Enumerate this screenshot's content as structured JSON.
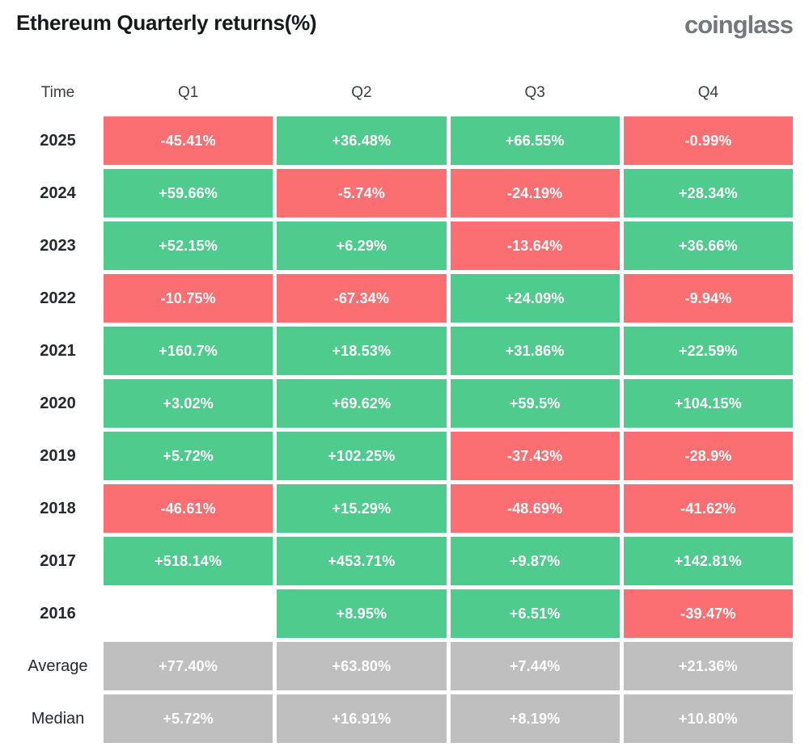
{
  "header": {
    "title": "Ethereum Quarterly returns(%)",
    "logo": "coinglass"
  },
  "colors": {
    "pos": "#4FCB8D",
    "neg": "#FB6F72",
    "stat": "#BFBFBF",
    "cell_text": "#FFFFFF"
  },
  "table": {
    "columns": [
      "Time",
      "Q1",
      "Q2",
      "Q3",
      "Q4"
    ],
    "rows": [
      {
        "label": "2025",
        "kind": "year",
        "cells": [
          {
            "text": "-45.41%",
            "type": "neg"
          },
          {
            "text": "+36.48%",
            "type": "pos"
          },
          {
            "text": "+66.55%",
            "type": "pos"
          },
          {
            "text": "-0.99%",
            "type": "neg"
          }
        ]
      },
      {
        "label": "2024",
        "kind": "year",
        "cells": [
          {
            "text": "+59.66%",
            "type": "pos"
          },
          {
            "text": "-5.74%",
            "type": "neg"
          },
          {
            "text": "-24.19%",
            "type": "neg"
          },
          {
            "text": "+28.34%",
            "type": "pos"
          }
        ]
      },
      {
        "label": "2023",
        "kind": "year",
        "cells": [
          {
            "text": "+52.15%",
            "type": "pos"
          },
          {
            "text": "+6.29%",
            "type": "pos"
          },
          {
            "text": "-13.64%",
            "type": "neg"
          },
          {
            "text": "+36.66%",
            "type": "pos"
          }
        ]
      },
      {
        "label": "2022",
        "kind": "year",
        "cells": [
          {
            "text": "-10.75%",
            "type": "neg"
          },
          {
            "text": "-67.34%",
            "type": "neg"
          },
          {
            "text": "+24.09%",
            "type": "pos"
          },
          {
            "text": "-9.94%",
            "type": "neg"
          }
        ]
      },
      {
        "label": "2021",
        "kind": "year",
        "cells": [
          {
            "text": "+160.7%",
            "type": "pos"
          },
          {
            "text": "+18.53%",
            "type": "pos"
          },
          {
            "text": "+31.86%",
            "type": "pos"
          },
          {
            "text": "+22.59%",
            "type": "pos"
          }
        ]
      },
      {
        "label": "2020",
        "kind": "year",
        "cells": [
          {
            "text": "+3.02%",
            "type": "pos"
          },
          {
            "text": "+69.62%",
            "type": "pos"
          },
          {
            "text": "+59.5%",
            "type": "pos"
          },
          {
            "text": "+104.15%",
            "type": "pos"
          }
        ]
      },
      {
        "label": "2019",
        "kind": "year",
        "cells": [
          {
            "text": "+5.72%",
            "type": "pos"
          },
          {
            "text": "+102.25%",
            "type": "pos"
          },
          {
            "text": "-37.43%",
            "type": "neg"
          },
          {
            "text": "-28.9%",
            "type": "neg"
          }
        ]
      },
      {
        "label": "2018",
        "kind": "year",
        "cells": [
          {
            "text": "-46.61%",
            "type": "neg"
          },
          {
            "text": "+15.29%",
            "type": "pos"
          },
          {
            "text": "-48.69%",
            "type": "neg"
          },
          {
            "text": "-41.62%",
            "type": "neg"
          }
        ]
      },
      {
        "label": "2017",
        "kind": "year",
        "cells": [
          {
            "text": "+518.14%",
            "type": "pos"
          },
          {
            "text": "+453.71%",
            "type": "pos"
          },
          {
            "text": "+9.87%",
            "type": "pos"
          },
          {
            "text": "+142.81%",
            "type": "pos"
          }
        ]
      },
      {
        "label": "2016",
        "kind": "year",
        "cells": [
          {
            "text": "",
            "type": "empty"
          },
          {
            "text": "+8.95%",
            "type": "pos"
          },
          {
            "text": "+6.51%",
            "type": "pos"
          },
          {
            "text": "-39.47%",
            "type": "neg"
          }
        ]
      },
      {
        "label": "Average",
        "kind": "stat",
        "cells": [
          {
            "text": "+77.40%",
            "type": "stat"
          },
          {
            "text": "+63.80%",
            "type": "stat"
          },
          {
            "text": "+7.44%",
            "type": "stat"
          },
          {
            "text": "+21.36%",
            "type": "stat"
          }
        ]
      },
      {
        "label": "Median",
        "kind": "stat",
        "cells": [
          {
            "text": "+5.72%",
            "type": "stat"
          },
          {
            "text": "+16.91%",
            "type": "stat"
          },
          {
            "text": "+8.19%",
            "type": "stat"
          },
          {
            "text": "+10.80%",
            "type": "stat"
          }
        ]
      }
    ]
  },
  "chart_data": {
    "type": "heatmap",
    "title": "Ethereum Quarterly returns(%)",
    "columns": [
      "Q1",
      "Q2",
      "Q3",
      "Q4"
    ],
    "rows": [
      {
        "label": "2025",
        "values": [
          -45.41,
          36.48,
          66.55,
          -0.99
        ]
      },
      {
        "label": "2024",
        "values": [
          59.66,
          -5.74,
          -24.19,
          28.34
        ]
      },
      {
        "label": "2023",
        "values": [
          52.15,
          6.29,
          -13.64,
          36.66
        ]
      },
      {
        "label": "2022",
        "values": [
          -10.75,
          -67.34,
          24.09,
          -9.94
        ]
      },
      {
        "label": "2021",
        "values": [
          160.7,
          18.53,
          31.86,
          22.59
        ]
      },
      {
        "label": "2020",
        "values": [
          3.02,
          69.62,
          59.5,
          104.15
        ]
      },
      {
        "label": "2019",
        "values": [
          5.72,
          102.25,
          -37.43,
          -28.9
        ]
      },
      {
        "label": "2018",
        "values": [
          -46.61,
          15.29,
          -48.69,
          -41.62
        ]
      },
      {
        "label": "2017",
        "values": [
          518.14,
          453.71,
          9.87,
          142.81
        ]
      },
      {
        "label": "2016",
        "values": [
          null,
          8.95,
          6.51,
          -39.47
        ]
      },
      {
        "label": "Average",
        "values": [
          77.4,
          63.8,
          7.44,
          21.36
        ]
      },
      {
        "label": "Median",
        "values": [
          5.72,
          16.91,
          8.19,
          10.8
        ]
      }
    ],
    "color_coding": {
      "positive": "#4FCB8D",
      "negative": "#FB6F72",
      "summary": "#BFBFBF"
    },
    "legend": "none",
    "grid": false
  }
}
